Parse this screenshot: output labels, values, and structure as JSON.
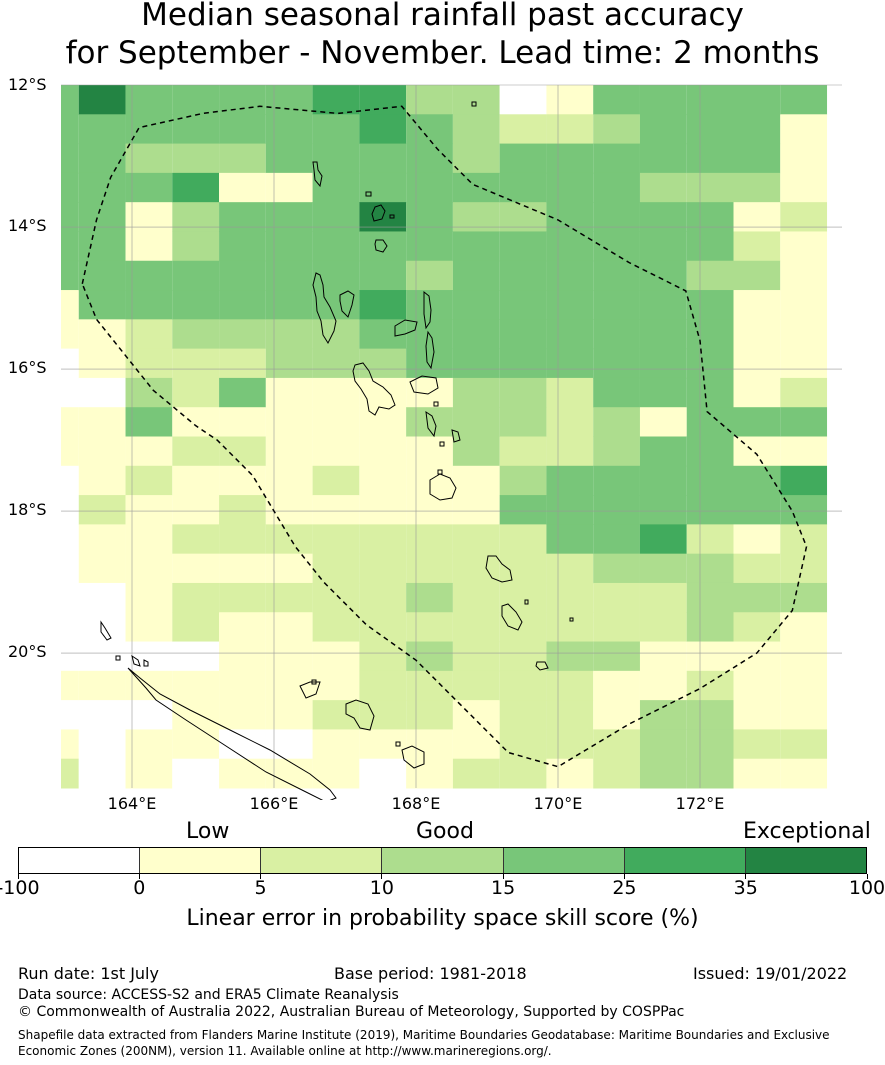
{
  "title": {
    "line1": "Median seasonal rainfall past accuracy",
    "line2": "for September - November. Lead time: 2 months"
  },
  "map": {
    "lat_ticks": [
      "12°S",
      "14°S",
      "16°S",
      "18°S",
      "20°S"
    ],
    "lon_ticks": [
      "164°E",
      "166°E",
      "168°E",
      "170°E",
      "172°E"
    ],
    "lon_range": [
      163,
      174
    ],
    "lat_range": [
      -21.9,
      -12
    ],
    "cell_size_deg": [
      0.833,
      0.556
    ],
    "palette": {
      "0": "#ffffff",
      "1": "#ffffcc",
      "2": "#d9f0a3",
      "3": "#addd8e",
      "4": "#78c679",
      "5": "#41ab5d",
      "6": "#238443"
    },
    "grid": [
      "46444455330144444",
      "44444445432234441",
      "44333444434444441",
      "44451144444443331",
      "44134446433444412",
      "44134444444444421",
      "44444444344444331",
      "14444445444444411",
      "11233334444444411",
      "01222333444444411",
      "00324111133244412",
      "11411111333231444",
      "11122111132234411",
      "01211121113444445",
      "02112111114444444",
      "01122222222445212",
      "01111122222233322",
      "00122222322222333",
      "00121122222222321",
      "00001112322331111",
      "11111112222211211",
      "00011122212213311",
      "10110011112223322",
      "20101110122123311"
    ],
    "eez_boundary": [
      [
        163.3,
        -14.8
      ],
      [
        163.5,
        -13.9
      ],
      [
        163.7,
        -13.3
      ],
      [
        164.1,
        -12.6
      ],
      [
        165.0,
        -12.4
      ],
      [
        165.8,
        -12.3
      ],
      [
        166.9,
        -12.4
      ],
      [
        167.8,
        -12.3
      ],
      [
        168.3,
        -12.9
      ],
      [
        168.8,
        -13.4
      ],
      [
        170.0,
        -13.9
      ],
      [
        171.0,
        -14.5
      ],
      [
        171.8,
        -14.9
      ],
      [
        172.0,
        -15.6
      ],
      [
        172.1,
        -16.6
      ],
      [
        172.8,
        -17.2
      ],
      [
        173.3,
        -18.0
      ],
      [
        173.5,
        -18.5
      ],
      [
        173.3,
        -19.4
      ],
      [
        172.8,
        -20.0
      ],
      [
        172.0,
        -20.5
      ],
      [
        171.0,
        -21.0
      ],
      [
        170.0,
        -21.6
      ],
      [
        169.3,
        -21.4
      ],
      [
        168.6,
        -20.7
      ],
      [
        168.0,
        -20.1
      ],
      [
        167.3,
        -19.6
      ],
      [
        166.7,
        -19.0
      ],
      [
        166.3,
        -18.5
      ],
      [
        166.0,
        -18.0
      ],
      [
        165.7,
        -17.5
      ],
      [
        165.2,
        -17.0
      ],
      [
        164.9,
        -16.8
      ],
      [
        164.3,
        -16.3
      ],
      [
        163.5,
        -15.3
      ],
      [
        163.3,
        -14.8
      ]
    ]
  },
  "colorbar": {
    "category_labels": [
      "Low",
      "Good",
      "Exceptional"
    ],
    "colors": [
      "#ffffff",
      "#ffffcc",
      "#d9f0a3",
      "#addd8e",
      "#78c679",
      "#41ab5d",
      "#238443"
    ],
    "tick_labels": [
      "-100",
      "0",
      "5",
      "10",
      "15",
      "25",
      "35",
      "100"
    ],
    "title": "Linear error in probability space skill score (%)"
  },
  "footer": {
    "run_date": "Run date: 1st July",
    "base_period": "Base period: 1981-2018",
    "issued": "Issued: 19/01/2022",
    "data_source": "Data source: ACCESS-S2 and ERA5 Climate Reanalysis",
    "copyright": "© Commonwealth of Australia 2022, Australian Bureau of Meteorology, Supported by COSPPac",
    "shapefile_line1": "Shapefile data extracted from Flanders Marine Institute (2019), Maritime Boundaries Geodatabase: Maritime Boundaries and Exclusive",
    "shapefile_line2": "Economic Zones (200NM), version 11. Available online at http://www.marineregions.org/."
  }
}
